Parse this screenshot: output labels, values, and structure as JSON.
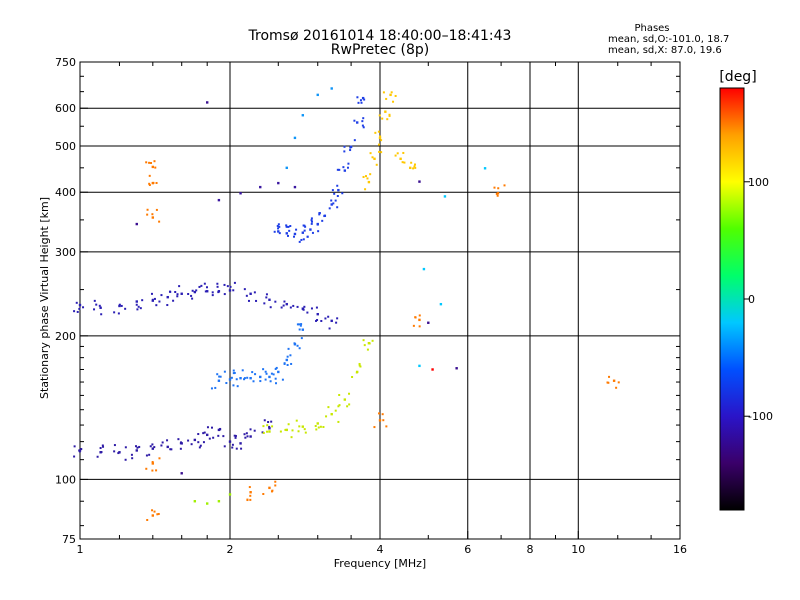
{
  "chart_data": {
    "type": "scatter",
    "title": "Tromsø 20161014 18:40:00–18:41:43",
    "subtitle": "RwPretec (8p)",
    "xlabel": "Frequency [MHz]",
    "ylabel": "Stationary phase Virtual Height [km]",
    "x_scale": "log",
    "y_scale": "log",
    "xlim": [
      1,
      16
    ],
    "ylim": [
      75,
      750
    ],
    "x_ticks": [
      1,
      2,
      4,
      6,
      8,
      10,
      16
    ],
    "y_ticks": [
      75,
      100,
      200,
      300,
      400,
      500,
      600,
      750
    ],
    "x_grid": [
      2,
      4,
      6,
      8,
      10
    ],
    "y_grid": [
      100,
      200,
      300,
      400,
      500,
      600
    ],
    "phases_box": {
      "title": "Phases",
      "line1": "mean, sd,O:-101.0, 18.7",
      "line2": "mean, sd,X:  87.0, 19.6"
    },
    "colorbar": {
      "label": "[deg]",
      "ticks": [
        100,
        0,
        -100
      ],
      "range": [
        -180,
        180
      ],
      "colors": [
        "#000000",
        "#3a006a",
        "#2a14c8",
        "#0050ff",
        "#00c8ff",
        "#00ff6a",
        "#50ff00",
        "#ffff00",
        "#ffa000",
        "#ff0000"
      ]
    },
    "series": [
      {
        "color": "#2e1ba6",
        "points": [
          [
            1.0,
            115
          ],
          [
            1.1,
            114
          ],
          [
            1.2,
            114
          ],
          [
            1.3,
            115
          ],
          [
            1.4,
            116
          ],
          [
            1.5,
            117
          ],
          [
            1.6,
            119
          ],
          [
            1.7,
            121
          ],
          [
            1.8,
            124
          ],
          [
            1.9,
            127
          ],
          [
            2.0,
            120
          ],
          [
            2.1,
            119
          ],
          [
            2.2,
            123
          ],
          [
            2.4,
            128
          ]
        ]
      },
      {
        "color": "#2b1fb4",
        "points": [
          [
            1.0,
            232
          ],
          [
            1.1,
            229
          ],
          [
            1.2,
            231
          ],
          [
            1.3,
            236
          ],
          [
            1.4,
            237
          ],
          [
            1.5,
            241
          ],
          [
            1.6,
            245
          ],
          [
            1.7,
            247
          ],
          [
            1.8,
            248
          ],
          [
            1.9,
            248
          ],
          [
            2.0,
            249
          ],
          [
            2.2,
            245
          ],
          [
            2.4,
            238
          ],
          [
            2.6,
            233
          ],
          [
            2.8,
            228
          ],
          [
            3.0,
            222
          ],
          [
            3.2,
            215
          ]
        ]
      },
      {
        "color": "#1f3fe6",
        "points": [
          [
            2.5,
            331
          ],
          [
            2.6,
            328
          ],
          [
            2.7,
            327
          ],
          [
            2.8,
            329
          ],
          [
            2.9,
            334
          ],
          [
            3.0,
            343
          ],
          [
            3.1,
            357
          ],
          [
            3.2,
            377
          ],
          [
            3.3,
            404
          ],
          [
            3.4,
            444
          ],
          [
            3.5,
            498
          ],
          [
            3.6,
            560
          ],
          [
            3.7,
            630
          ]
        ]
      },
      {
        "color": "#3a17a0",
        "points": [
          [
            1.9,
            385
          ],
          [
            2.1,
            398
          ],
          [
            2.3,
            410
          ],
          [
            2.5,
            418
          ],
          [
            2.7,
            410
          ]
        ]
      },
      {
        "color": "#1e74f5",
        "points": [
          [
            1.9,
            161
          ],
          [
            2.0,
            162
          ],
          [
            2.1,
            163
          ],
          [
            2.2,
            163
          ],
          [
            2.3,
            164
          ],
          [
            2.4,
            164
          ],
          [
            2.5,
            168
          ],
          [
            2.6,
            178
          ],
          [
            2.7,
            192
          ],
          [
            2.8,
            206
          ]
        ]
      },
      {
        "color": "#0f95f8",
        "points": [
          [
            2.6,
            450
          ],
          [
            2.7,
            520
          ],
          [
            2.8,
            580
          ],
          [
            3.0,
            640
          ],
          [
            3.2,
            660
          ]
        ]
      },
      {
        "color": "#c8e800",
        "points": [
          [
            2.4,
            126
          ],
          [
            2.6,
            127
          ],
          [
            2.8,
            129
          ],
          [
            3.0,
            131
          ],
          [
            3.2,
            137
          ],
          [
            3.4,
            147
          ],
          [
            3.6,
            168
          ],
          [
            3.8,
            193
          ]
        ]
      },
      {
        "color": "#ffc800",
        "points": [
          [
            3.8,
            420
          ],
          [
            3.9,
            470
          ],
          [
            4.0,
            520
          ],
          [
            4.1,
            590
          ],
          [
            4.2,
            640
          ],
          [
            4.4,
            470
          ],
          [
            4.6,
            450
          ]
        ]
      },
      {
        "color": "#a0f000",
        "points": [
          [
            1.7,
            90
          ],
          [
            1.8,
            89
          ],
          [
            1.9,
            90
          ],
          [
            2.0,
            93
          ]
        ]
      },
      {
        "color": "#ff7a00",
        "points": [
          [
            1.4,
            84
          ],
          [
            1.4,
            108
          ],
          [
            1.4,
            354
          ],
          [
            1.4,
            418
          ],
          [
            1.4,
            452
          ],
          [
            2.2,
            94
          ],
          [
            2.4,
            96
          ],
          [
            4.8,
            216
          ],
          [
            6.9,
            398
          ],
          [
            11.8,
            161
          ],
          [
            4.0,
            133
          ]
        ]
      },
      {
        "color": "#00c8ff",
        "points": [
          [
            4.8,
            173
          ],
          [
            5.4,
            392
          ],
          [
            6.5,
            449
          ],
          [
            4.9,
            276
          ],
          [
            5.3,
            233
          ]
        ]
      },
      {
        "color": "#3a0f90",
        "points": [
          [
            1.3,
            343
          ],
          [
            1.8,
            617
          ],
          [
            4.8,
            421
          ],
          [
            5.0,
            213
          ],
          [
            1.6,
            103
          ],
          [
            5.7,
            171
          ]
        ]
      },
      {
        "color": "#ff0000",
        "points": [
          [
            5.1,
            170
          ]
        ]
      }
    ]
  }
}
